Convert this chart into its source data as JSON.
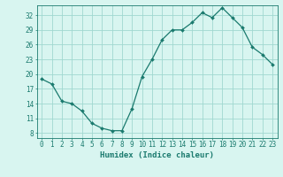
{
  "x": [
    0,
    1,
    2,
    3,
    4,
    5,
    6,
    7,
    8,
    9,
    10,
    11,
    12,
    13,
    14,
    15,
    16,
    17,
    18,
    19,
    20,
    21,
    22,
    23
  ],
  "y": [
    19.0,
    18.0,
    14.5,
    14.0,
    12.5,
    10.0,
    9.0,
    8.5,
    8.5,
    13.0,
    19.5,
    23.0,
    27.0,
    29.0,
    29.0,
    30.5,
    32.5,
    31.5,
    33.5,
    31.5,
    29.5,
    25.5,
    24.0,
    22.0
  ],
  "line_color": "#1a7a6e",
  "marker": "D",
  "marker_size": 2.0,
  "background_color": "#d8f5f0",
  "grid_color": "#a0d8d0",
  "xlabel": "Humidex (Indice chaleur)",
  "xlim": [
    -0.5,
    23.5
  ],
  "ylim": [
    7,
    34
  ],
  "yticks": [
    8,
    11,
    14,
    17,
    20,
    23,
    26,
    29,
    32
  ],
  "xticks": [
    0,
    1,
    2,
    3,
    4,
    5,
    6,
    7,
    8,
    9,
    10,
    11,
    12,
    13,
    14,
    15,
    16,
    17,
    18,
    19,
    20,
    21,
    22,
    23
  ],
  "tick_color": "#1a7a6e",
  "label_fontsize": 6.5,
  "tick_fontsize": 5.5,
  "linewidth": 0.9
}
